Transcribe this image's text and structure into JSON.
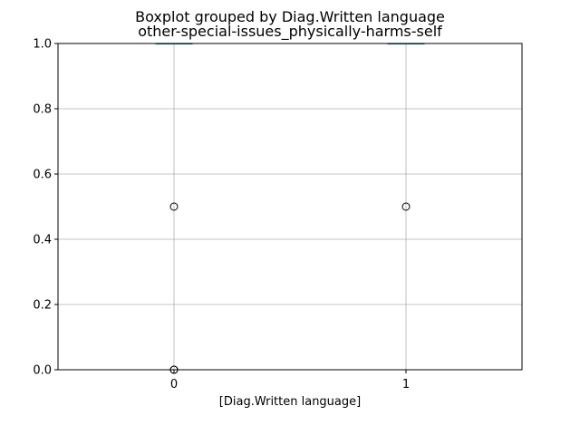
{
  "chart_data": {
    "type": "box",
    "title": "Boxplot grouped by Diag.Written language",
    "subtitle": "other-special-issues_physically-harms-self",
    "xlabel": "[Diag.Written language]",
    "ylabel": "",
    "categories": [
      "0",
      "1"
    ],
    "ylim": [
      0,
      1
    ],
    "yticks": [
      "0.0",
      "0.2",
      "0.4",
      "0.6",
      "0.8",
      "1.0"
    ],
    "ytick_values": [
      0,
      0.2,
      0.4,
      0.6,
      0.8,
      1.0
    ],
    "grid": true,
    "boxes": [
      {
        "category": "0",
        "q1": 1.0,
        "median": 1.0,
        "q3": 1.0,
        "whisker_low": 1.0,
        "whisker_high": 1.0,
        "outliers": [
          0.5,
          0.0,
          0.0
        ]
      },
      {
        "category": "1",
        "q1": 1.0,
        "median": 1.0,
        "q3": 1.0,
        "whisker_low": 1.0,
        "whisker_high": 1.0,
        "outliers": [
          0.5
        ]
      }
    ],
    "colors": {
      "grid": "#b0b0b0",
      "box": "#1f77b4",
      "median": "#2ca02c",
      "outlier": "#000000"
    }
  }
}
